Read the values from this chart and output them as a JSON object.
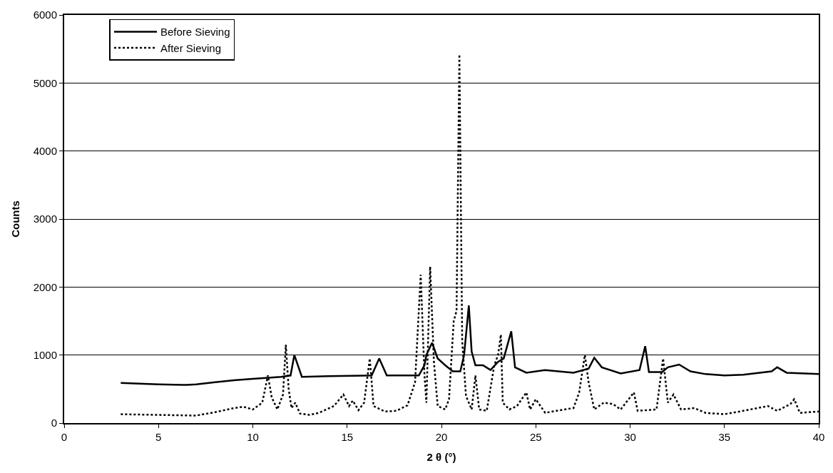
{
  "chart_data": {
    "type": "line",
    "xlabel": "2 θ (°)",
    "ylabel": "Counts",
    "xlim": [
      0,
      40
    ],
    "xticks": [
      0,
      5,
      10,
      15,
      20,
      25,
      30,
      35,
      40
    ],
    "ylim": [
      0,
      6000
    ],
    "yticks": [
      0,
      1000,
      2000,
      3000,
      4000,
      5000,
      6000
    ],
    "grid": "y",
    "legend": "top left",
    "series": [
      {
        "name": "Before Sieving",
        "color": "#000000",
        "line_style": "solid",
        "x": [
          3,
          5,
          6.5,
          7,
          8,
          9,
          10,
          11.5,
          12,
          12.2,
          12.6,
          14,
          16.3,
          16.7,
          17.1,
          18.8,
          19.1,
          19.2,
          19.5,
          19.8,
          20.2,
          20.6,
          21.0,
          21.2,
          21.45,
          21.6,
          21.8,
          22.2,
          22.6,
          23.0,
          23.3,
          23.7,
          23.9,
          24.5,
          25.5,
          27,
          27.8,
          28.1,
          28.5,
          29.5,
          30.5,
          30.8,
          31.0,
          31.7,
          32.0,
          32.6,
          33.2,
          34,
          35,
          36,
          37.5,
          37.8,
          38.3,
          40
        ],
        "values": [
          590,
          570,
          560,
          570,
          600,
          630,
          650,
          680,
          700,
          1000,
          680,
          690,
          700,
          950,
          700,
          700,
          850,
          1000,
          1180,
          950,
          850,
          760,
          760,
          1000,
          1730,
          1050,
          850,
          850,
          780,
          900,
          950,
          1350,
          820,
          740,
          780,
          740,
          800,
          960,
          820,
          730,
          780,
          1130,
          750,
          750,
          820,
          860,
          760,
          720,
          700,
          710,
          760,
          820,
          740,
          720
        ]
      },
      {
        "name": "After Sieving",
        "color": "#000000",
        "line_style": "dotted",
        "x": [
          3,
          5,
          7,
          8,
          9,
          9.5,
          10,
          10.5,
          10.8,
          11.0,
          11.3,
          11.6,
          11.75,
          11.9,
          12.05,
          12.25,
          12.5,
          13,
          13.5,
          14.3,
          14.8,
          15.1,
          15.3,
          15.6,
          15.9,
          16.2,
          16.4,
          17,
          17.6,
          18.2,
          18.6,
          18.9,
          19.1,
          19.2,
          19.4,
          19.6,
          19.8,
          20.2,
          20.4,
          20.65,
          20.8,
          20.95,
          21.1,
          21.3,
          21.6,
          21.8,
          22.0,
          22.4,
          22.8,
          23.0,
          23.15,
          23.25,
          23.6,
          24.0,
          24.5,
          24.7,
          25.0,
          25.5,
          26.5,
          27.0,
          27.3,
          27.6,
          27.8,
          28.1,
          28.6,
          29.1,
          29.5,
          30.2,
          30.4,
          31.4,
          31.75,
          32.0,
          32.3,
          32.7,
          33.4,
          34,
          35,
          36,
          37.3,
          37.8,
          38.5,
          38.7,
          39,
          40
        ],
        "values": [
          130,
          120,
          110,
          160,
          220,
          240,
          200,
          300,
          700,
          380,
          200,
          420,
          1150,
          500,
          220,
          300,
          140,
          120,
          150,
          250,
          420,
          250,
          330,
          190,
          300,
          950,
          250,
          170,
          180,
          260,
          600,
          2180,
          700,
          300,
          2300,
          900,
          250,
          200,
          350,
          1500,
          1650,
          5420,
          1200,
          400,
          200,
          700,
          200,
          180,
          850,
          1000,
          1300,
          300,
          200,
          250,
          450,
          200,
          350,
          150,
          200,
          220,
          450,
          1000,
          600,
          200,
          300,
          280,
          200,
          450,
          180,
          200,
          950,
          300,
          420,
          200,
          220,
          150,
          130,
          180,
          250,
          180,
          280,
          350,
          150,
          170
        ]
      }
    ]
  }
}
